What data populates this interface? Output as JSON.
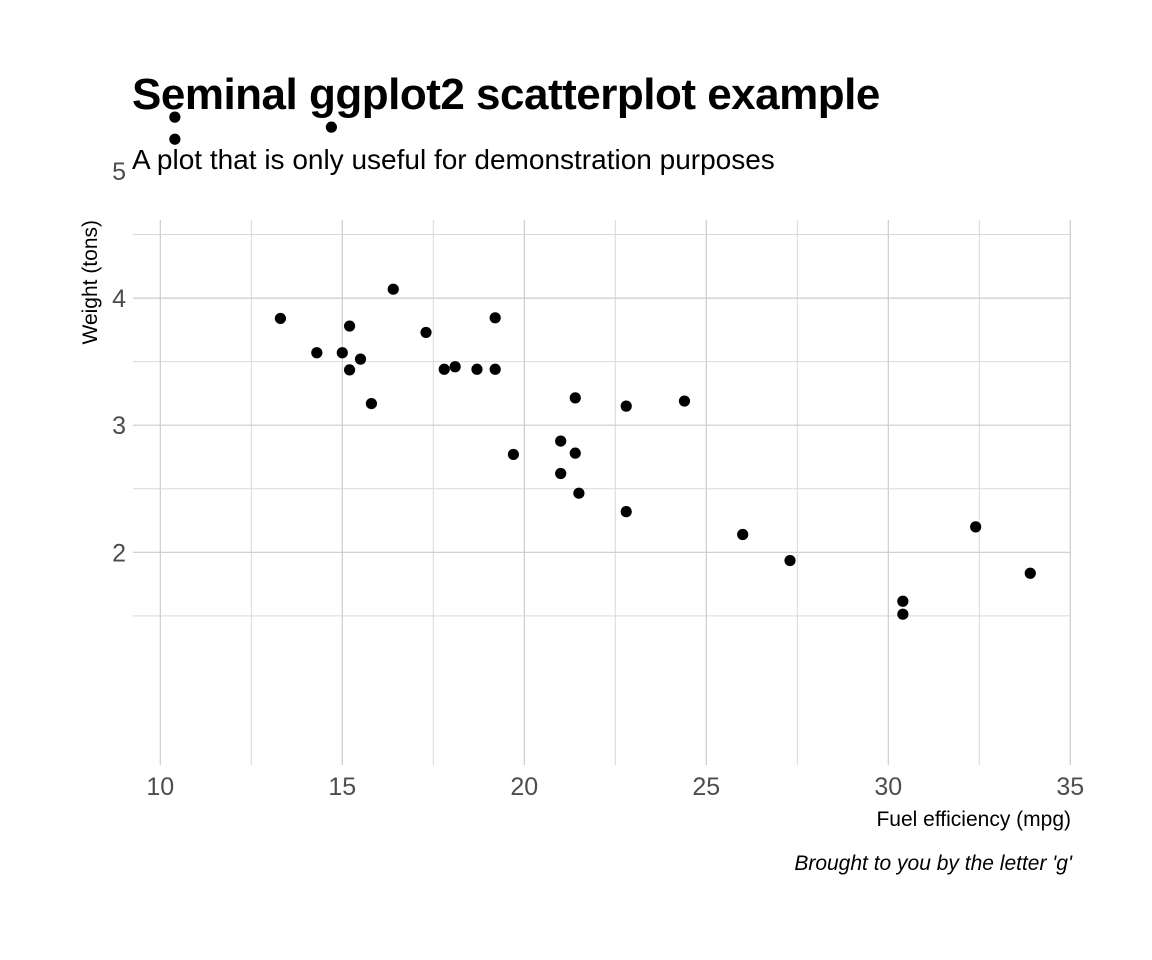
{
  "chart_data": {
    "type": "scatter",
    "title": "Seminal ggplot2 scatterplot example",
    "subtitle": "A plot that is only useful for demonstration purposes",
    "xlabel": "Fuel efficiency (mpg)",
    "ylabel": "Weight (tons)",
    "caption": "Brought to you by the letter 'g'",
    "xlim": [
      10,
      35
    ],
    "ylim": [
      1.5,
      5.4
    ],
    "x_ticks": [
      "10",
      "15",
      "20",
      "25",
      "30",
      "35"
    ],
    "y_ticks": [
      "2",
      "3",
      "4",
      "5"
    ],
    "grid": true,
    "point_color": "#000000",
    "points": [
      {
        "x": 10.4,
        "y": 5.424
      },
      {
        "x": 10.4,
        "y": 5.25
      },
      {
        "x": 14.7,
        "y": 5.345
      },
      {
        "x": 16.4,
        "y": 4.07
      },
      {
        "x": 13.3,
        "y": 3.84
      },
      {
        "x": 19.2,
        "y": 3.845
      },
      {
        "x": 15.2,
        "y": 3.78
      },
      {
        "x": 17.3,
        "y": 3.73
      },
      {
        "x": 14.3,
        "y": 3.57
      },
      {
        "x": 15.0,
        "y": 3.57
      },
      {
        "x": 15.5,
        "y": 3.52
      },
      {
        "x": 18.1,
        "y": 3.46
      },
      {
        "x": 15.2,
        "y": 3.435
      },
      {
        "x": 17.8,
        "y": 3.44
      },
      {
        "x": 18.7,
        "y": 3.44
      },
      {
        "x": 19.2,
        "y": 3.44
      },
      {
        "x": 15.8,
        "y": 3.17
      },
      {
        "x": 21.4,
        "y": 3.215
      },
      {
        "x": 24.4,
        "y": 3.19
      },
      {
        "x": 22.8,
        "y": 3.15
      },
      {
        "x": 21.0,
        "y": 2.875
      },
      {
        "x": 21.4,
        "y": 2.78
      },
      {
        "x": 19.7,
        "y": 2.77
      },
      {
        "x": 21.0,
        "y": 2.62
      },
      {
        "x": 21.5,
        "y": 2.465
      },
      {
        "x": 22.8,
        "y": 2.32
      },
      {
        "x": 26.0,
        "y": 2.14
      },
      {
        "x": 27.3,
        "y": 1.935
      },
      {
        "x": 32.4,
        "y": 2.2
      },
      {
        "x": 33.9,
        "y": 1.835
      },
      {
        "x": 30.4,
        "y": 1.615
      },
      {
        "x": 30.4,
        "y": 1.513
      }
    ]
  }
}
